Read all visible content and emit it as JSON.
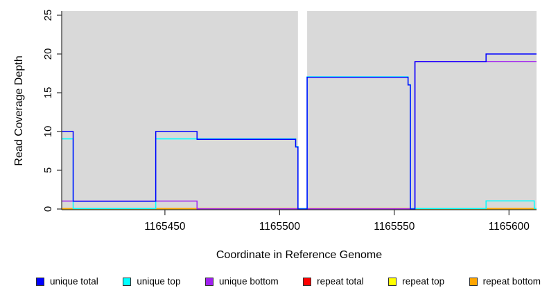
{
  "chart_data": {
    "type": "line",
    "subtype": "step-coverage",
    "title": "",
    "xlabel": "Coordinate in Reference Genome",
    "ylabel": "Read Coverage Depth",
    "xlim": [
      1165405,
      1165612
    ],
    "ylim": [
      0,
      25
    ],
    "x_ticks": [
      1165450,
      1165500,
      1165550,
      1165600
    ],
    "y_ticks": [
      0,
      5,
      10,
      15,
      20,
      25
    ],
    "grid": false,
    "plot_background": "#d9d9d9",
    "gap_region": {
      "start": 1165508,
      "end": 1165512
    },
    "series": [
      {
        "name": "repeat total",
        "color": "#ff0000",
        "points": [
          [
            1165405,
            0
          ]
        ]
      },
      {
        "name": "repeat top",
        "color": "#ffff00",
        "points": [
          [
            1165405,
            0
          ]
        ]
      },
      {
        "name": "repeat bottom",
        "color": "#ffa500",
        "points": [
          [
            1165405,
            0
          ]
        ]
      },
      {
        "name": "unique bottom",
        "color": "#a020f0",
        "points": [
          [
            1165405,
            1
          ],
          [
            1165464,
            0
          ],
          [
            1165559,
            19
          ]
        ]
      },
      {
        "name": "unique top",
        "color": "#00ffff",
        "points": [
          [
            1165405,
            9
          ],
          [
            1165410,
            0
          ],
          [
            1165446,
            9
          ],
          [
            1165507,
            8
          ],
          [
            1165508,
            0
          ],
          [
            1165512,
            17
          ],
          [
            1165556,
            16
          ],
          [
            1165557,
            0
          ],
          [
            1165590,
            1
          ],
          [
            1165611,
            0
          ]
        ]
      },
      {
        "name": "unique total",
        "color": "#0000ff",
        "points": [
          [
            1165405,
            10
          ],
          [
            1165410,
            1
          ],
          [
            1165446,
            10
          ],
          [
            1165464,
            9
          ],
          [
            1165507,
            8
          ],
          [
            1165508,
            0
          ],
          [
            1165512,
            17
          ],
          [
            1165556,
            16
          ],
          [
            1165557,
            0
          ],
          [
            1165559,
            19
          ],
          [
            1165590,
            20
          ]
        ]
      }
    ],
    "legend": [
      {
        "label": "unique total",
        "color": "#0000ff"
      },
      {
        "label": "unique top",
        "color": "#00ffff"
      },
      {
        "label": "unique bottom",
        "color": "#a020f0"
      },
      {
        "label": "repeat total",
        "color": "#ff0000"
      },
      {
        "label": "repeat top",
        "color": "#ffff00"
      },
      {
        "label": "repeat bottom",
        "color": "#ffa500"
      }
    ],
    "legend_position": "bottom"
  }
}
